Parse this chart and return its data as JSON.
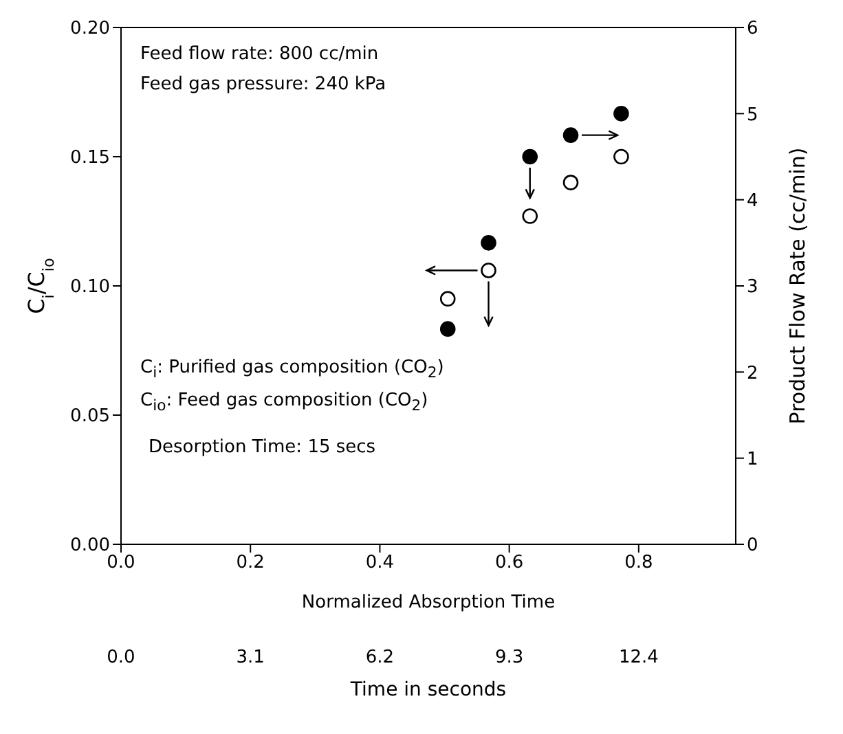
{
  "chart_data": {
    "type": "scatter",
    "xlabel": "Normalized Absorption Time",
    "ylabel": "C$_{i}$/C$_{io}$",
    "y2label": "Product Flow Rate (cc/min)",
    "x2label": "Time in seconds",
    "x": [
      0.505,
      0.568,
      0.632,
      0.695,
      0.773
    ],
    "series": [
      {
        "color": "#000000",
        "values": [
          0.095,
          0.106,
          0.127,
          0.14,
          0.15
        ]
      },
      {
        "color": "#000000",
        "axis": "y2",
        "values": [
          2.5,
          3.5,
          4.5,
          4.75,
          5.0
        ]
      }
    ],
    "xlim": [
      0,
      0.95
    ],
    "xticks": [
      {
        "value": 0,
        "label": "0.0"
      },
      0.2,
      0.4,
      0.6,
      0.8
    ],
    "ylim": [
      0,
      0.2
    ],
    "yticks": [
      {
        "value": 0,
        "label": "0.00"
      },
      0.05,
      {
        "value": 0.1,
        "label": "0.10"
      },
      0.15,
      {
        "value": 0.2,
        "label": "0.20"
      }
    ],
    "y2lim": [
      0,
      6
    ],
    "y2ticks": [
      0,
      1,
      2,
      3,
      4,
      5,
      6
    ],
    "x2lim": [
      0,
      14.725
    ],
    "x2ticks": [
      {
        "value": 0,
        "label": "0.0"
      },
      3.1,
      6.2,
      9.3,
      12.4
    ],
    "marker": "circle",
    "grid": false,
    "legend": false,
    "annotations": [
      "Feed flow rate: 800 cc/min",
      "Feed gas pressure: 240 kPa",
      "C$_{i}$: Purified gas composition (CO$_{2}$)",
      "C$_{io}$: Feed gas composition (CO$_{2}$)",
      "Desorption Time: 15 secs"
    ]
  }
}
